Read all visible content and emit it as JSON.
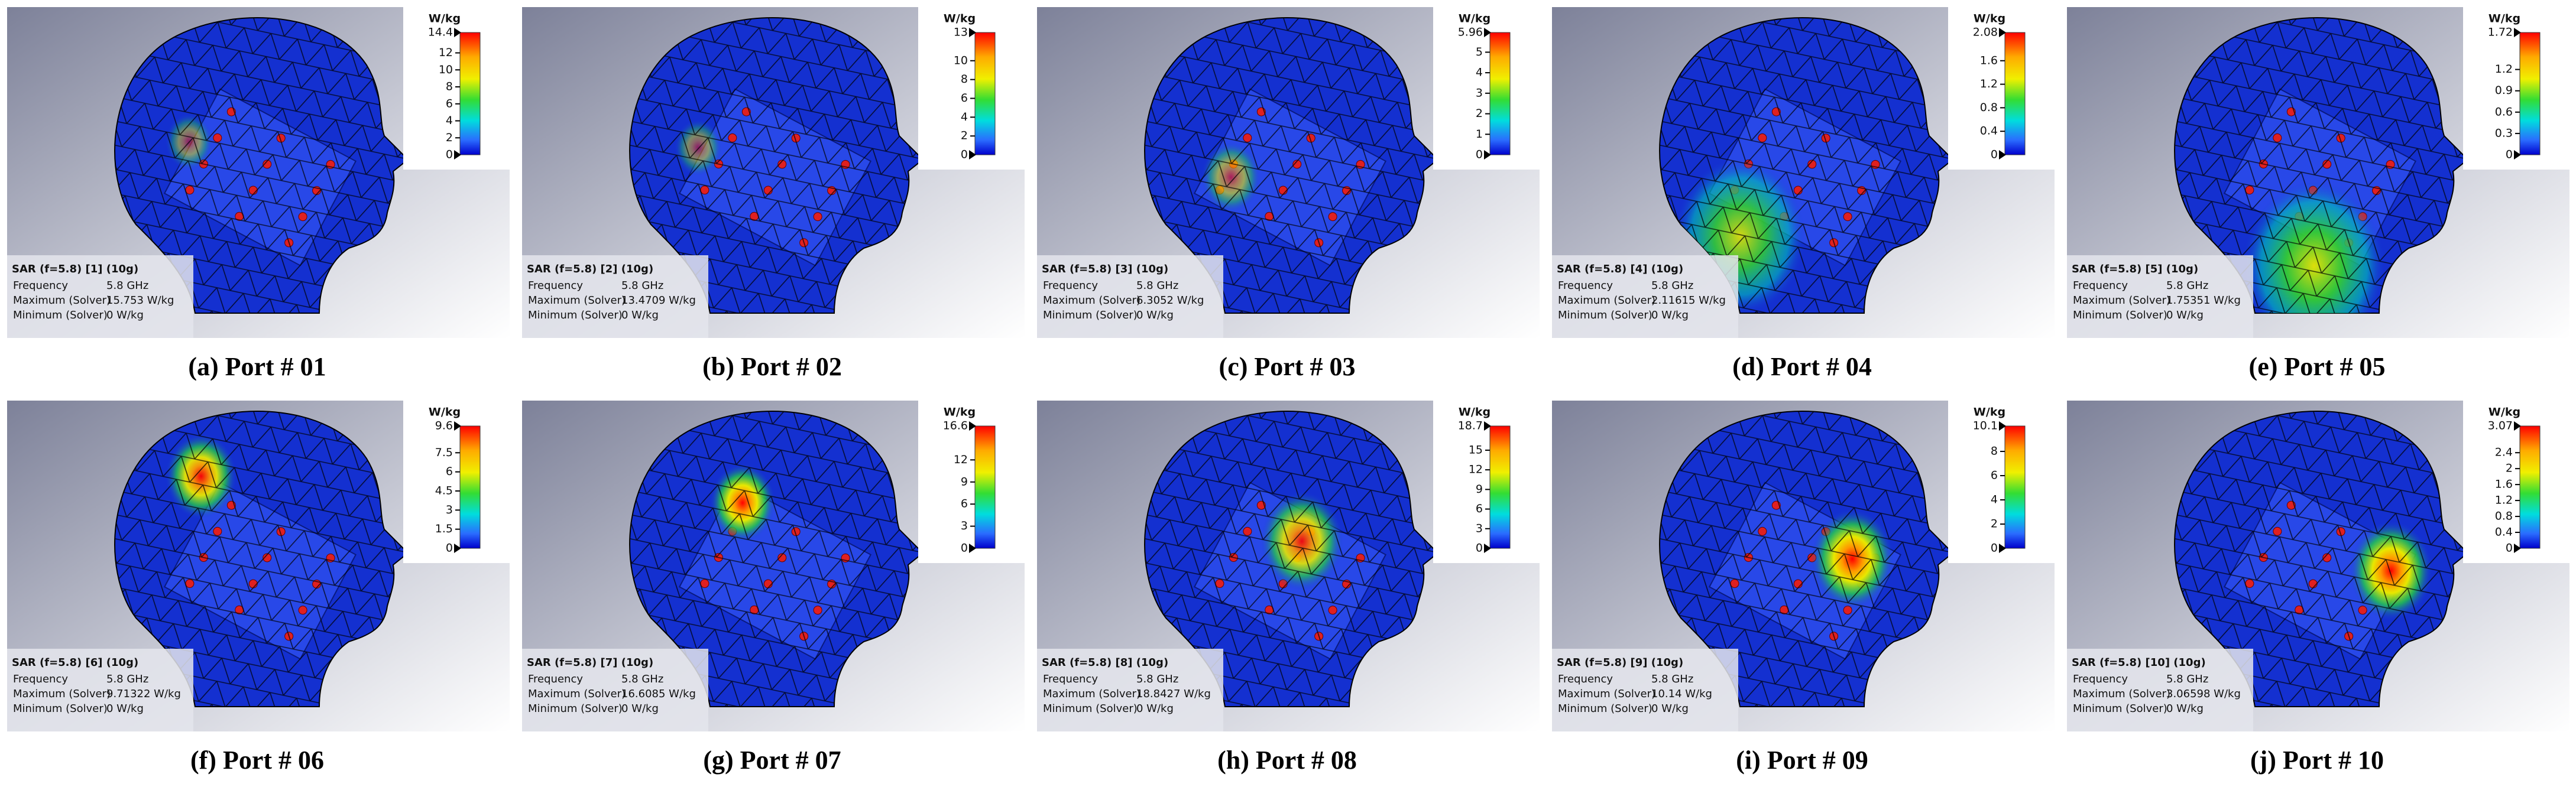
{
  "panels": [
    {
      "caption": "(a) Port # 01",
      "title": "SAR (f=5.8) [1] (10g)",
      "unit": "W/kg",
      "rows": [
        [
          "Frequency",
          "5.8 GHz"
        ],
        [
          "Maximum (Solver)",
          "15.753 W/kg"
        ],
        [
          "Minimum (Solver)",
          "0 W/kg"
        ]
      ],
      "ticks": [
        "14.4",
        "12",
        "10",
        "8",
        "6",
        "4",
        "2",
        "0"
      ]
    },
    {
      "caption": "(b) Port # 02",
      "title": "SAR (f=5.8) [2] (10g)",
      "unit": "W/kg",
      "rows": [
        [
          "Frequency",
          "5.8 GHz"
        ],
        [
          "Maximum (Solver)",
          "13.4709 W/kg"
        ],
        [
          "Minimum (Solver)",
          "0 W/kg"
        ]
      ],
      "ticks": [
        "13",
        "10",
        "8",
        "6",
        "4",
        "2",
        "0"
      ]
    },
    {
      "caption": "(c) Port # 03",
      "title": "SAR (f=5.8) [3] (10g)",
      "unit": "W/kg",
      "rows": [
        [
          "Frequency",
          "5.8 GHz"
        ],
        [
          "Maximum (Solver)",
          "6.3052 W/kg"
        ],
        [
          "Minimum (Solver)",
          "0 W/kg"
        ]
      ],
      "ticks": [
        "5.96",
        "5",
        "4",
        "3",
        "2",
        "1",
        "0"
      ]
    },
    {
      "caption": "(d) Port # 04",
      "title": "SAR (f=5.8) [4] (10g)",
      "unit": "W/kg",
      "rows": [
        [
          "Frequency",
          "5.8 GHz"
        ],
        [
          "Maximum (Solver)",
          "2.11615 W/kg"
        ],
        [
          "Minimum (Solver)",
          "0 W/kg"
        ]
      ],
      "ticks": [
        "2.08",
        "1.6",
        "1.2",
        "0.8",
        "0.4",
        "0"
      ]
    },
    {
      "caption": "(e) Port # 05",
      "title": "SAR (f=5.8) [5] (10g)",
      "unit": "W/kg",
      "rows": [
        [
          "Frequency",
          "5.8 GHz"
        ],
        [
          "Maximum (Solver)",
          "1.75351 W/kg"
        ],
        [
          "Minimum (Solver)",
          "0 W/kg"
        ]
      ],
      "ticks": [
        "1.72",
        "1.2",
        "0.9",
        "0.6",
        "0.3",
        "0"
      ]
    },
    {
      "caption": "(f) Port # 06",
      "title": "SAR (f=5.8) [6] (10g)",
      "unit": "W/kg",
      "rows": [
        [
          "Frequency",
          "5.8 GHz"
        ],
        [
          "Maximum (Solver)",
          "9.71322 W/kg"
        ],
        [
          "Minimum (Solver)",
          "0 W/kg"
        ]
      ],
      "ticks": [
        "9.6",
        "7.5",
        "6",
        "4.5",
        "3",
        "1.5",
        "0"
      ]
    },
    {
      "caption": "(g) Port # 07",
      "title": "SAR (f=5.8) [7] (10g)",
      "unit": "W/kg",
      "rows": [
        [
          "Frequency",
          "5.8 GHz"
        ],
        [
          "Maximum (Solver)",
          "16.6085 W/kg"
        ],
        [
          "Minimum (Solver)",
          "0 W/kg"
        ]
      ],
      "ticks": [
        "16.6",
        "12",
        "9",
        "6",
        "3",
        "0"
      ]
    },
    {
      "caption": "(h) Port # 08",
      "title": "SAR (f=5.8) [8] (10g)",
      "unit": "W/kg",
      "rows": [
        [
          "Frequency",
          "5.8 GHz"
        ],
        [
          "Maximum (Solver)",
          "18.8427 W/kg"
        ],
        [
          "Minimum (Solver)",
          "0 W/kg"
        ]
      ],
      "ticks": [
        "18.7",
        "15",
        "12",
        "9",
        "6",
        "3",
        "0"
      ]
    },
    {
      "caption": "(i) Port # 09",
      "title": "SAR (f=5.8) [9] (10g)",
      "unit": "W/kg",
      "rows": [
        [
          "Frequency",
          "5.8 GHz"
        ],
        [
          "Maximum (Solver)",
          "10.14 W/kg"
        ],
        [
          "Minimum (Solver)",
          "0 W/kg"
        ]
      ],
      "ticks": [
        "10.1",
        "8",
        "6",
        "4",
        "2",
        "0"
      ]
    },
    {
      "caption": "(j) Port # 10",
      "title": "SAR (f=5.8) [10] (10g)",
      "unit": "W/kg",
      "rows": [
        [
          "Frequency",
          "5.8 GHz"
        ],
        [
          "Maximum (Solver)",
          "3.06598 W/kg"
        ],
        [
          "Minimum (Solver)",
          "0 W/kg"
        ]
      ],
      "ticks": [
        "3.07",
        "2.4",
        "2",
        "1.6",
        "1.2",
        "0.8",
        "0.4",
        "0"
      ]
    }
  ]
}
